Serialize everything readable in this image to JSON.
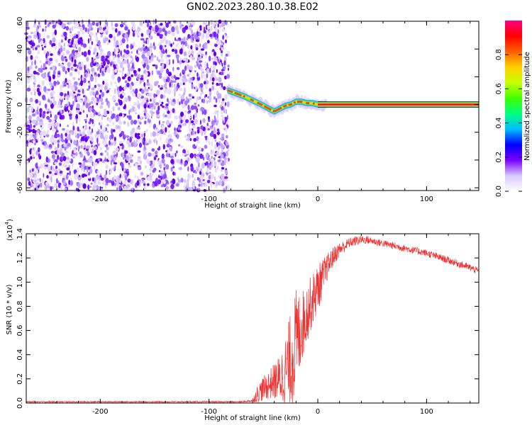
{
  "figure_title": "GN02.2023.280.10.38.E02",
  "colors": {
    "snr_line": "#ee3030",
    "ridge_core": "#ee2020",
    "noise_dark": "#6a00f0",
    "noise_light": "#d9c8ff",
    "axis": "#000000"
  },
  "chart_data": [
    {
      "type": "heatmap",
      "title": "GN02.2023.280.10.38.E02",
      "xlabel": "Height of straight line (km)",
      "ylabel": "Frequency (Hz)",
      "xlim": [
        -268,
        148
      ],
      "ylim": [
        -62,
        60
      ],
      "x_ticks": [
        -200,
        -100,
        0,
        100
      ],
      "x_tick_labels": [
        "-200",
        "-100",
        "0",
        "100"
      ],
      "y_ticks": [
        -60,
        -40,
        -20,
        0,
        20,
        40,
        60
      ],
      "y_tick_labels": [
        "-60",
        "-40",
        "-20",
        "0",
        "20",
        "40",
        "60"
      ],
      "noise_region": {
        "x_range": [
          -268,
          -82
        ],
        "description_level": "scattered low-amplitude speckle"
      },
      "ridge": {
        "x": [
          -82,
          -75,
          -68,
          -60,
          -52,
          -45,
          -40,
          -35,
          -30,
          -25,
          -20,
          -15,
          -10,
          -5,
          0,
          5,
          148
        ],
        "y": [
          10,
          8,
          6,
          3,
          0,
          -3,
          -5,
          -3,
          -1,
          0,
          2,
          2,
          1,
          1,
          0,
          0,
          0
        ],
        "amplitude_note": "ridge amplitude near 1.0 after x = 0"
      },
      "colorbar": {
        "label": "Normalized spectral amplitude",
        "range": [
          0.0,
          1.0
        ],
        "ticks": [
          0.0,
          0.2,
          0.4,
          0.6,
          0.8
        ],
        "tick_labels": [
          "0.0",
          "0.2",
          "0.4",
          "0.6",
          "0.8"
        ],
        "colormap": [
          "#ffffff",
          "#d9c8ff",
          "#7a00ff",
          "#0000ff",
          "#00bfff",
          "#00ff80",
          "#40ff00",
          "#c8ff00",
          "#ffd000",
          "#ff6000",
          "#ff0000",
          "#ff0080"
        ]
      },
      "grid": false
    },
    {
      "type": "line",
      "xlabel": "Height of straight line (km)",
      "ylabel": "SNR (10 * v/v)",
      "y_scale_note": "(x10",
      "y_scale_exponent": "4",
      "xlim": [
        -268,
        148
      ],
      "ylim": [
        0,
        1.4
      ],
      "x_ticks": [
        -200,
        -100,
        0,
        100
      ],
      "x_tick_labels": [
        "-200",
        "-100",
        "0",
        "100"
      ],
      "y_ticks": [
        0.0,
        0.2,
        0.4,
        0.6,
        0.8,
        1.0,
        1.2,
        1.4
      ],
      "y_tick_labels": [
        "0.0",
        "0.2",
        "0.4",
        "0.6",
        "0.8",
        "1.0",
        "1.2",
        "1.4"
      ],
      "series": [
        {
          "x": [
            -268,
            -200,
            -150,
            -100,
            -70,
            -60,
            -55,
            -50,
            -45,
            -40,
            -35,
            -30,
            -25,
            -20,
            -15,
            -10,
            -5,
            0,
            5,
            10,
            15,
            20,
            25,
            30,
            35,
            40,
            45,
            50,
            60,
            70,
            80,
            90,
            100,
            110,
            120,
            130,
            140,
            148
          ],
          "y": [
            0.01,
            0.01,
            0.01,
            0.01,
            0.01,
            0.02,
            0.08,
            0.12,
            0.15,
            0.18,
            0.2,
            0.25,
            0.35,
            0.5,
            0.62,
            0.75,
            0.85,
            0.95,
            1.05,
            1.15,
            1.22,
            1.27,
            1.3,
            1.33,
            1.34,
            1.35,
            1.35,
            1.34,
            1.32,
            1.3,
            1.28,
            1.26,
            1.24,
            1.21,
            1.18,
            1.15,
            1.12,
            1.09
          ],
          "noise_amplitude": [
            0.005,
            0.005,
            0.005,
            0.005,
            0.005,
            0.01,
            0.08,
            0.1,
            0.12,
            0.15,
            0.2,
            0.3,
            0.4,
            0.45,
            0.3,
            0.25,
            0.22,
            0.2,
            0.15,
            0.1,
            0.08,
            0.06,
            0.05,
            0.04,
            0.04,
            0.035,
            0.035,
            0.03,
            0.03,
            0.03,
            0.03,
            0.03,
            0.03,
            0.03,
            0.03,
            0.03,
            0.03,
            0.03
          ]
        }
      ],
      "grid": false
    }
  ]
}
